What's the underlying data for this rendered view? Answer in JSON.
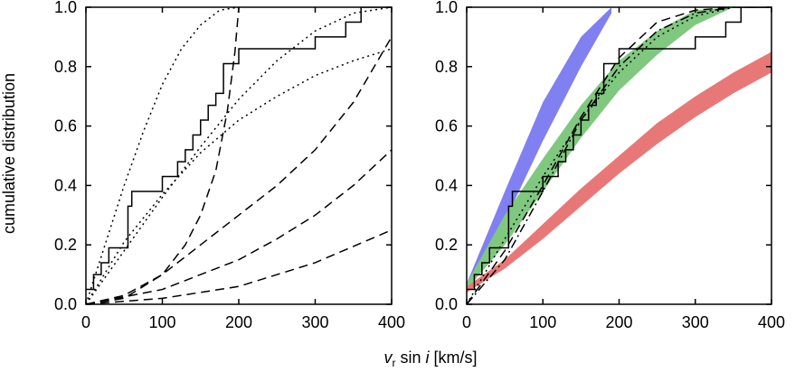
{
  "chart_data": [
    {
      "type": "line",
      "panel": "left",
      "ylabel": "cumulative distribution",
      "xlim": [
        0,
        400
      ],
      "ylim": [
        0,
        1
      ],
      "xticks": [
        0,
        100,
        200,
        300,
        400
      ],
      "yticks": [
        0.0,
        0.2,
        0.4,
        0.6,
        0.8,
        1.0
      ],
      "ytick_labels": [
        "0.0",
        "0.2",
        "0.4",
        "0.6",
        "0.8",
        "1.0"
      ],
      "grid": false,
      "series": [
        {
          "style": "step",
          "color": "#000000",
          "x": [
            0,
            10,
            20,
            30,
            50,
            55,
            60,
            100,
            120,
            130,
            140,
            150,
            160,
            170,
            180,
            200,
            220,
            300,
            340,
            360,
            400
          ],
          "y": [
            0.05,
            0.1,
            0.14,
            0.19,
            0.19,
            0.33,
            0.38,
            0.43,
            0.48,
            0.52,
            0.57,
            0.62,
            0.67,
            0.71,
            0.81,
            0.86,
            0.86,
            0.9,
            0.95,
            1.0,
            1.0
          ]
        },
        {
          "style": "dotted",
          "color": "#000000",
          "x": [
            0,
            25,
            50,
            75,
            100,
            125,
            150,
            175,
            200
          ],
          "y": [
            0.0,
            0.2,
            0.4,
            0.58,
            0.74,
            0.86,
            0.94,
            0.99,
            1.0
          ]
        },
        {
          "style": "dotted",
          "color": "#000000",
          "x": [
            0,
            50,
            100,
            150,
            200,
            250,
            300,
            350,
            400
          ],
          "y": [
            0.0,
            0.18,
            0.36,
            0.53,
            0.69,
            0.82,
            0.92,
            0.98,
            1.0
          ]
        },
        {
          "style": "dotted",
          "color": "#000000",
          "x": [
            0,
            50,
            100,
            150,
            200,
            250,
            300,
            350,
            400
          ],
          "y": [
            0.0,
            0.21,
            0.37,
            0.51,
            0.62,
            0.7,
            0.77,
            0.82,
            0.86
          ]
        },
        {
          "style": "dashed",
          "color": "#000000",
          "x": [
            0,
            50,
            100,
            130,
            150,
            170,
            185,
            195,
            200
          ],
          "y": [
            0.0,
            0.02,
            0.1,
            0.2,
            0.3,
            0.45,
            0.65,
            0.85,
            1.0
          ]
        },
        {
          "style": "dashed",
          "color": "#000000",
          "x": [
            0,
            50,
            100,
            150,
            200,
            250,
            300,
            350,
            400
          ],
          "y": [
            0.0,
            0.03,
            0.1,
            0.2,
            0.3,
            0.4,
            0.52,
            0.68,
            0.9
          ]
        },
        {
          "style": "dashed",
          "color": "#000000",
          "x": [
            0,
            100,
            200,
            250,
            300,
            350,
            400
          ],
          "y": [
            0.0,
            0.05,
            0.15,
            0.22,
            0.3,
            0.4,
            0.52
          ]
        },
        {
          "style": "dashed",
          "color": "#000000",
          "x": [
            0,
            100,
            200,
            300,
            400
          ],
          "y": [
            0.0,
            0.02,
            0.06,
            0.14,
            0.25
          ]
        }
      ]
    },
    {
      "type": "area",
      "panel": "right",
      "xlim": [
        0,
        400
      ],
      "ylim": [
        0,
        1
      ],
      "xticks": [
        0,
        100,
        200,
        300,
        400
      ],
      "yticks": [
        0.0,
        0.2,
        0.4,
        0.6,
        0.8,
        1.0
      ],
      "ytick_labels": [
        "0.0",
        "0.2",
        "0.4",
        "0.6",
        "0.8",
        "1.0"
      ],
      "grid": false,
      "bands": [
        {
          "color": "#8080f0",
          "x": [
            0,
            50,
            100,
            150,
            190
          ],
          "lower": [
            0.05,
            0.28,
            0.55,
            0.8,
            0.98
          ],
          "upper": [
            0.07,
            0.38,
            0.68,
            0.9,
            1.0
          ]
        },
        {
          "color": "#80c880",
          "x": [
            0,
            50,
            100,
            150,
            200,
            250,
            300,
            350
          ],
          "lower": [
            0.05,
            0.2,
            0.38,
            0.56,
            0.72,
            0.84,
            0.94,
            1.0
          ],
          "upper": [
            0.07,
            0.3,
            0.49,
            0.67,
            0.82,
            0.92,
            0.99,
            1.0
          ]
        },
        {
          "color": "#e87878",
          "x": [
            0,
            50,
            100,
            150,
            200,
            250,
            300,
            350,
            400
          ],
          "lower": [
            0.04,
            0.12,
            0.22,
            0.33,
            0.44,
            0.54,
            0.63,
            0.71,
            0.78
          ],
          "upper": [
            0.06,
            0.15,
            0.27,
            0.39,
            0.5,
            0.61,
            0.7,
            0.78,
            0.85
          ]
        }
      ],
      "series": [
        {
          "style": "step",
          "color": "#000000",
          "x": [
            0,
            10,
            20,
            30,
            50,
            55,
            60,
            100,
            120,
            130,
            140,
            150,
            160,
            170,
            180,
            200,
            220,
            300,
            340,
            360,
            400
          ],
          "y": [
            0.05,
            0.1,
            0.14,
            0.19,
            0.19,
            0.33,
            0.38,
            0.43,
            0.48,
            0.52,
            0.57,
            0.62,
            0.67,
            0.71,
            0.81,
            0.86,
            0.86,
            0.9,
            0.95,
            1.0,
            1.0
          ]
        },
        {
          "style": "dashed",
          "color": "#000000",
          "x": [
            0,
            50,
            100,
            150,
            200,
            250,
            300,
            350,
            400
          ],
          "y": [
            0.0,
            0.18,
            0.4,
            0.63,
            0.83,
            0.95,
            0.99,
            1.0,
            1.0
          ]
        },
        {
          "style": "dashdot",
          "color": "#000000",
          "x": [
            0,
            50,
            100,
            150,
            200,
            250,
            300,
            350,
            400
          ],
          "y": [
            0.0,
            0.15,
            0.38,
            0.62,
            0.8,
            0.92,
            0.98,
            1.0,
            1.0
          ]
        },
        {
          "style": "dotted",
          "color": "#000000",
          "x": [
            0,
            50,
            100,
            150,
            200,
            250,
            300,
            350,
            400
          ],
          "y": [
            0.0,
            0.22,
            0.43,
            0.62,
            0.78,
            0.9,
            0.97,
            1.0,
            1.0
          ]
        }
      ]
    }
  ],
  "shared_xlabel": {
    "main": "v",
    "sub": "r",
    "mid": " sin ",
    "italic": "i",
    "unit": " [km/s]"
  }
}
